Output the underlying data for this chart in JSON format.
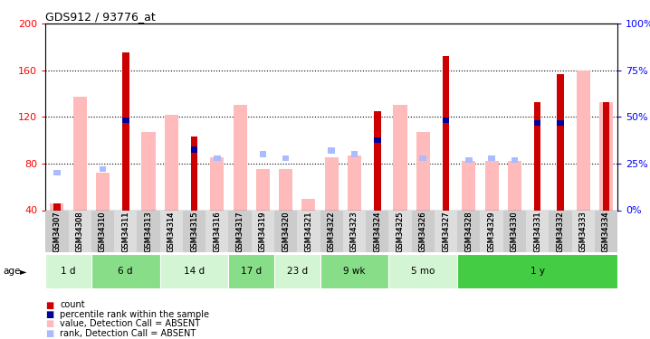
{
  "title": "GDS912 / 93776_at",
  "samples": [
    "GSM34307",
    "GSM34308",
    "GSM34310",
    "GSM34311",
    "GSM34313",
    "GSM34314",
    "GSM34315",
    "GSM34316",
    "GSM34317",
    "GSM34319",
    "GSM34320",
    "GSM34321",
    "GSM34322",
    "GSM34323",
    "GSM34324",
    "GSM34325",
    "GSM34326",
    "GSM34327",
    "GSM34328",
    "GSM34329",
    "GSM34330",
    "GSM34331",
    "GSM34332",
    "GSM34333",
    "GSM34334"
  ],
  "count": [
    46,
    0,
    0,
    175,
    0,
    0,
    103,
    0,
    0,
    0,
    0,
    0,
    0,
    0,
    125,
    0,
    0,
    172,
    0,
    0,
    0,
    133,
    157,
    0,
    133
  ],
  "rank_val": [
    0,
    0,
    0,
    117,
    0,
    0,
    92,
    0,
    0,
    0,
    0,
    0,
    0,
    0,
    100,
    0,
    0,
    117,
    0,
    0,
    0,
    115,
    115,
    0,
    0
  ],
  "absent_value": [
    46,
    137,
    72,
    0,
    107,
    122,
    0,
    85,
    130,
    75,
    75,
    50,
    85,
    87,
    0,
    130,
    107,
    0,
    82,
    82,
    82,
    0,
    0,
    160,
    133
  ],
  "absent_rank": [
    20,
    0,
    22,
    0,
    0,
    0,
    0,
    28,
    0,
    30,
    28,
    0,
    32,
    30,
    0,
    0,
    28,
    0,
    27,
    28,
    27,
    0,
    0,
    0,
    32
  ],
  "age_groups": [
    {
      "label": "1 d",
      "start": 0,
      "end": 2,
      "color": "#d4f5d4"
    },
    {
      "label": "6 d",
      "start": 2,
      "end": 5,
      "color": "#88dd88"
    },
    {
      "label": "14 d",
      "start": 5,
      "end": 8,
      "color": "#d4f5d4"
    },
    {
      "label": "17 d",
      "start": 8,
      "end": 10,
      "color": "#88dd88"
    },
    {
      "label": "23 d",
      "start": 10,
      "end": 12,
      "color": "#d4f5d4"
    },
    {
      "label": "9 wk",
      "start": 12,
      "end": 15,
      "color": "#88dd88"
    },
    {
      "label": "5 mo",
      "start": 15,
      "end": 18,
      "color": "#d4f5d4"
    },
    {
      "label": "1 y",
      "start": 18,
      "end": 25,
      "color": "#44cc44"
    }
  ],
  "ylim_left": [
    40,
    200
  ],
  "ylim_right": [
    0,
    100
  ],
  "yticks_left": [
    40,
    80,
    120,
    160,
    200
  ],
  "yticks_right": [
    0,
    25,
    50,
    75,
    100
  ],
  "bar_color_count": "#cc0000",
  "bar_color_rank": "#000099",
  "bar_color_absent_value": "#ffbbbb",
  "bar_color_absent_rank": "#aabbff"
}
